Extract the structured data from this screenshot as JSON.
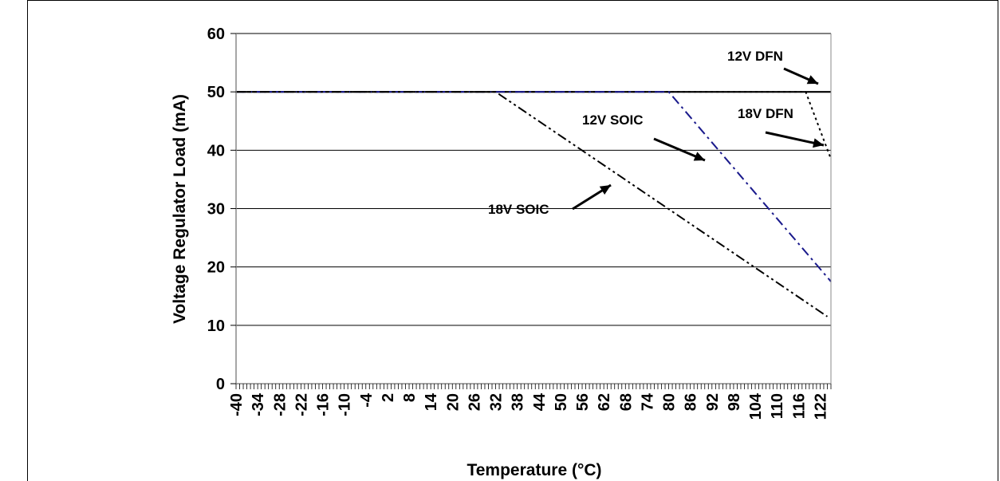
{
  "chart_data": {
    "type": "line",
    "title": "",
    "xlabel": "Temperature (°C)",
    "ylabel": "Voltage Regulator Load (mA)",
    "xlim": [
      -40,
      125
    ],
    "ylim": [
      0,
      60
    ],
    "y_ticks": [
      0,
      10,
      20,
      30,
      40,
      50,
      60
    ],
    "x_tick_labels": [
      "-40",
      "-34",
      "-28",
      "-22",
      "-16",
      "-10",
      "-4",
      "2",
      "8",
      "14",
      "20",
      "26",
      "32",
      "38",
      "44",
      "50",
      "56",
      "62",
      "68",
      "74",
      "80",
      "86",
      "92",
      "98",
      "104",
      "110",
      "116",
      "122"
    ],
    "grid": "horizontal",
    "series": [
      {
        "name": "12V DFN",
        "color": "#000000",
        "style": "solid",
        "x": [
          -40,
          125
        ],
        "y": [
          50,
          50
        ]
      },
      {
        "name": "18V DFN",
        "color": "#000000",
        "style": "dotted",
        "x": [
          -40,
          118,
          125
        ],
        "y": [
          50,
          50,
          38.5
        ]
      },
      {
        "name": "12V SOIC",
        "color": "#1a1a8c",
        "style": "dash-dot",
        "x": [
          -40,
          80,
          125
        ],
        "y": [
          50,
          50,
          17.5
        ]
      },
      {
        "name": "18V SOIC",
        "color": "#000000",
        "style": "dash-dot-dot",
        "x": [
          -40,
          32,
          124
        ],
        "y": [
          50,
          50,
          11.5
        ]
      }
    ],
    "annotations": [
      {
        "text": "12V DFN"
      },
      {
        "text": "18V DFN"
      },
      {
        "text": "12V SOIC"
      },
      {
        "text": "18V SOIC"
      }
    ]
  }
}
